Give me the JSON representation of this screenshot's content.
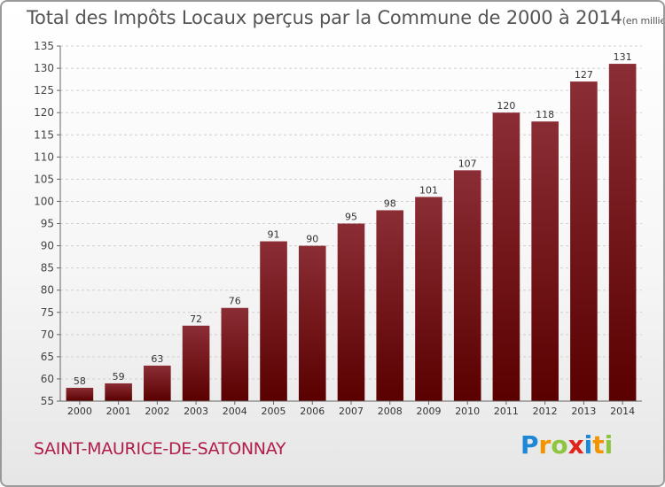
{
  "title": "Total des Impôts Locaux perçus par la Commune de 2000 à 2014",
  "title_unit": "(en milliers d'€)",
  "commune": "SAINT-MAURICE-DE-SATONNAY",
  "brand": {
    "letters": [
      {
        "ch": "P",
        "color": "#1e88d8"
      },
      {
        "ch": "r",
        "color": "#f29400"
      },
      {
        "ch": "o",
        "color": "#8cc63e"
      },
      {
        "ch": "x",
        "color": "#e2231a"
      },
      {
        "ch": "i",
        "color": "#1e88d8"
      },
      {
        "ch": "t",
        "color": "#f29400"
      },
      {
        "ch": "i",
        "color": "#8cc63e"
      }
    ]
  },
  "chart_data": {
    "type": "bar",
    "categories": [
      "2000",
      "2001",
      "2002",
      "2003",
      "2004",
      "2005",
      "2006",
      "2007",
      "2008",
      "2009",
      "2010",
      "2011",
      "2012",
      "2013",
      "2014"
    ],
    "values": [
      58,
      59,
      63,
      72,
      76,
      91,
      90,
      95,
      98,
      101,
      107,
      120,
      118,
      127,
      131
    ],
    "ylim": [
      55,
      135
    ],
    "yticks": [
      55,
      60,
      65,
      70,
      75,
      80,
      85,
      90,
      95,
      100,
      105,
      110,
      115,
      120,
      125,
      130,
      135
    ],
    "bar_color_top": "#8b2d35",
    "bar_color_bottom": "#5a0000",
    "grid_color": "#d0d0d0",
    "xlabel": "",
    "ylabel": ""
  }
}
